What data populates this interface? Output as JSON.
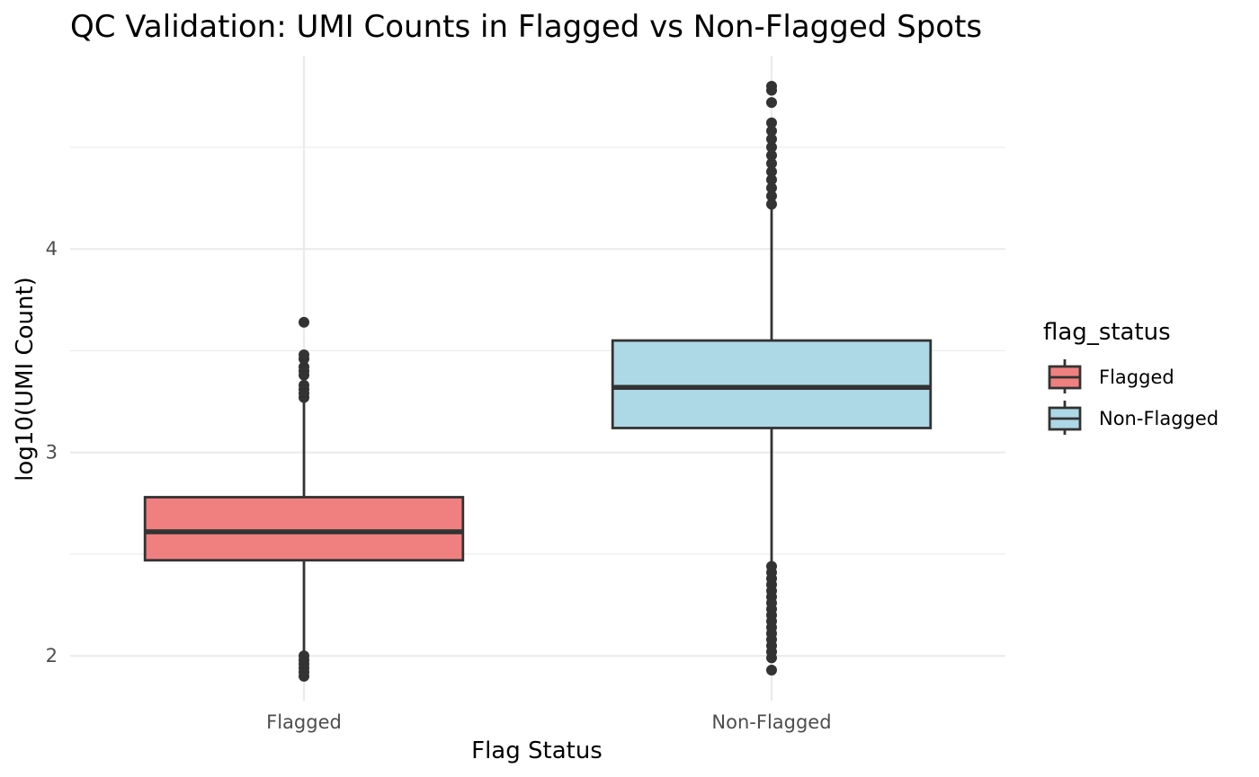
{
  "chart_data": {
    "type": "boxplot",
    "title": "QC Validation: UMI Counts in Flagged vs Non-Flagged Spots",
    "xlabel": "Flag Status",
    "ylabel": "log10(UMI Count)",
    "categories": [
      "Flagged",
      "Non-Flagged"
    ],
    "ylim": [
      1.78,
      4.95
    ],
    "yticks": [
      2,
      3,
      4
    ],
    "grid": true,
    "legend": {
      "title": "flag_status",
      "position": "right",
      "entries": [
        {
          "label": "Flagged",
          "color": "#F08080"
        },
        {
          "label": "Non-Flagged",
          "color": "#ADD8E6"
        }
      ]
    },
    "series": [
      {
        "category": "Flagged",
        "color": "#F08080",
        "whisker_low": 2.01,
        "q1": 2.47,
        "median": 2.61,
        "q3": 2.78,
        "whisker_high": 3.25,
        "outliers": [
          1.9,
          1.92,
          1.94,
          1.96,
          1.98,
          2.0,
          3.27,
          3.29,
          3.31,
          3.33,
          3.38,
          3.4,
          3.42,
          3.46,
          3.48,
          3.64
        ]
      },
      {
        "category": "Non-Flagged",
        "color": "#ADD8E6",
        "whisker_low": 2.46,
        "q1": 3.12,
        "median": 3.32,
        "q3": 3.55,
        "whisker_high": 4.2,
        "outliers": [
          1.93,
          1.99,
          2.02,
          2.05,
          2.08,
          2.11,
          2.14,
          2.17,
          2.2,
          2.23,
          2.26,
          2.29,
          2.32,
          2.35,
          2.38,
          2.41,
          2.44,
          4.22,
          4.26,
          4.3,
          4.34,
          4.38,
          4.42,
          4.46,
          4.5,
          4.54,
          4.58,
          4.62,
          4.72,
          4.78,
          4.8
        ]
      }
    ]
  }
}
